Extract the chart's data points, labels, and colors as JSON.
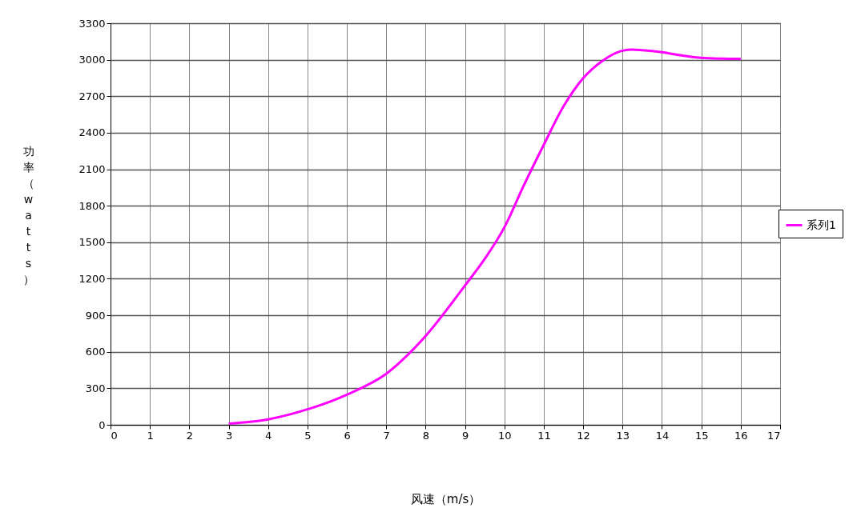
{
  "chart_data": {
    "type": "line",
    "xlabel": "风速（m/s）",
    "ylabel": "功率（watts）",
    "x": [
      3,
      4,
      5,
      6,
      7,
      8,
      9,
      9.5,
      10,
      10.5,
      11,
      11.5,
      12,
      12.5,
      13,
      13.25,
      13.5,
      14,
      14.5,
      15,
      15.5,
      16
    ],
    "series": [
      {
        "name": "系列1",
        "color": "#ff00ff",
        "values": [
          10,
          45,
          127,
          248,
          419,
          730,
          1145,
          1363,
          1623,
          1972,
          2301,
          2616,
          2848,
          2993,
          3074,
          3083,
          3078,
          3061,
          3035,
          3015,
          3009,
          3007
        ]
      }
    ],
    "xlim": [
      0,
      17
    ],
    "xticks": [
      0,
      1,
      2,
      3,
      4,
      5,
      6,
      7,
      8,
      9,
      10,
      11,
      12,
      13,
      14,
      15,
      16,
      17
    ],
    "ylim": [
      0,
      3300
    ],
    "yticks": [
      0,
      300,
      600,
      900,
      1200,
      1500,
      1800,
      2100,
      2400,
      2700,
      3000,
      3300
    ],
    "grid": true,
    "legend": "right",
    "marker": "none",
    "line_style": "solid"
  }
}
